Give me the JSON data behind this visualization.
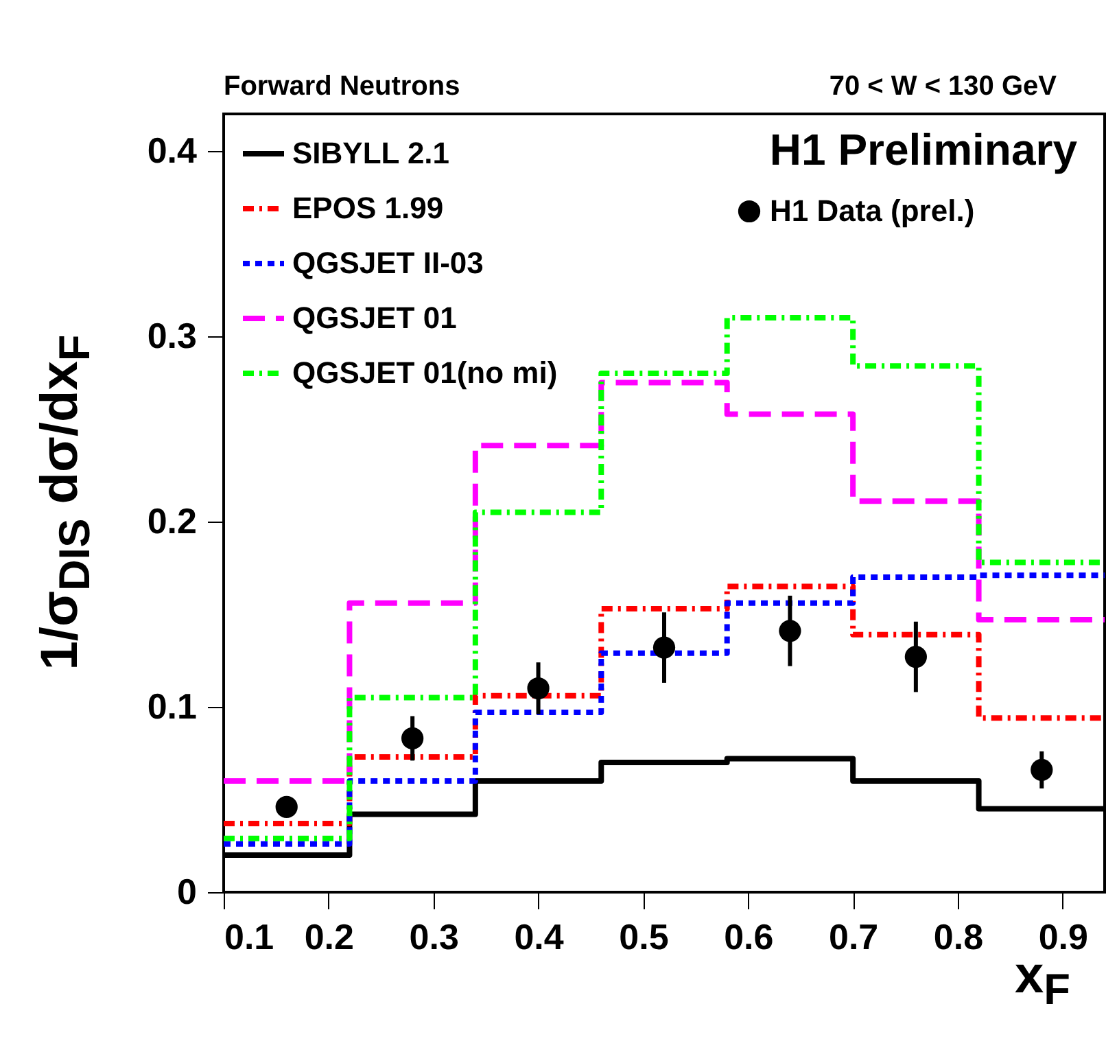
{
  "chart_data": {
    "type": "step",
    "title": "Forward Neutrons",
    "subtitle": "70 < W < 130 GeV",
    "xlabel": "x$_{F}$",
    "ylabel": "1/σ$_{DIS}$ dσ/dx$_{F}$",
    "annotations": [
      "H1 Preliminary"
    ],
    "xlim": [
      0.1,
      0.94
    ],
    "xticks": [
      0.1,
      0.2,
      0.3,
      0.4,
      0.5,
      0.6,
      0.7,
      0.8,
      0.9
    ],
    "ylim": [
      0,
      0.42
    ],
    "yticks": [
      0,
      0.1,
      0.2,
      0.3,
      0.4
    ],
    "grid": false,
    "legend": "top left",
    "series": [
      {
        "name": "SIBYLL 2.1",
        "color": "#000000",
        "line_style": "solid",
        "x": [
          0.1,
          0.22,
          0.34,
          0.46,
          0.58,
          0.7,
          0.82,
          0.94
        ],
        "values": [
          0.02,
          0.042,
          0.06,
          0.07,
          0.072,
          0.06,
          0.045,
          0.045
        ]
      },
      {
        "name": "EPOS 1.99",
        "color": "#ff0000",
        "line_style": "dashdot",
        "x": [
          0.1,
          0.22,
          0.34,
          0.46,
          0.58,
          0.7,
          0.82,
          0.94
        ],
        "values": [
          0.037,
          0.073,
          0.106,
          0.153,
          0.165,
          0.139,
          0.094,
          0.094
        ]
      },
      {
        "name": "QGSJET II-03",
        "color": "#0000ff",
        "line_style": "dotted",
        "x": [
          0.1,
          0.22,
          0.34,
          0.46,
          0.58,
          0.7,
          0.82,
          0.94
        ],
        "values": [
          0.026,
          0.06,
          0.097,
          0.129,
          0.156,
          0.17,
          0.171,
          0.171
        ]
      },
      {
        "name": "QGSJET 01",
        "color": "#ff00ff",
        "line_style": "dashed",
        "x": [
          0.1,
          0.22,
          0.34,
          0.46,
          0.58,
          0.7,
          0.82,
          0.94
        ],
        "values": [
          0.06,
          0.156,
          0.241,
          0.275,
          0.258,
          0.211,
          0.147,
          0.147
        ]
      },
      {
        "name": "QGSJET 01(no mi)",
        "color": "#00ff00",
        "line_style": "dashdot",
        "x": [
          0.1,
          0.22,
          0.34,
          0.46,
          0.58,
          0.7,
          0.82,
          0.94
        ],
        "values": [
          0.029,
          0.105,
          0.205,
          0.28,
          0.31,
          0.284,
          0.178,
          0.178
        ]
      },
      {
        "name": "H1 Data (prel.)",
        "type": "scatter",
        "marker": "circle",
        "color": "#000000",
        "x": [
          0.16,
          0.28,
          0.4,
          0.52,
          0.64,
          0.76,
          0.88
        ],
        "values": [
          0.046,
          0.083,
          0.11,
          0.132,
          0.141,
          0.127,
          0.066
        ],
        "errors": [
          0.003,
          0.012,
          0.014,
          0.019,
          0.019,
          0.019,
          0.01
        ]
      }
    ]
  }
}
